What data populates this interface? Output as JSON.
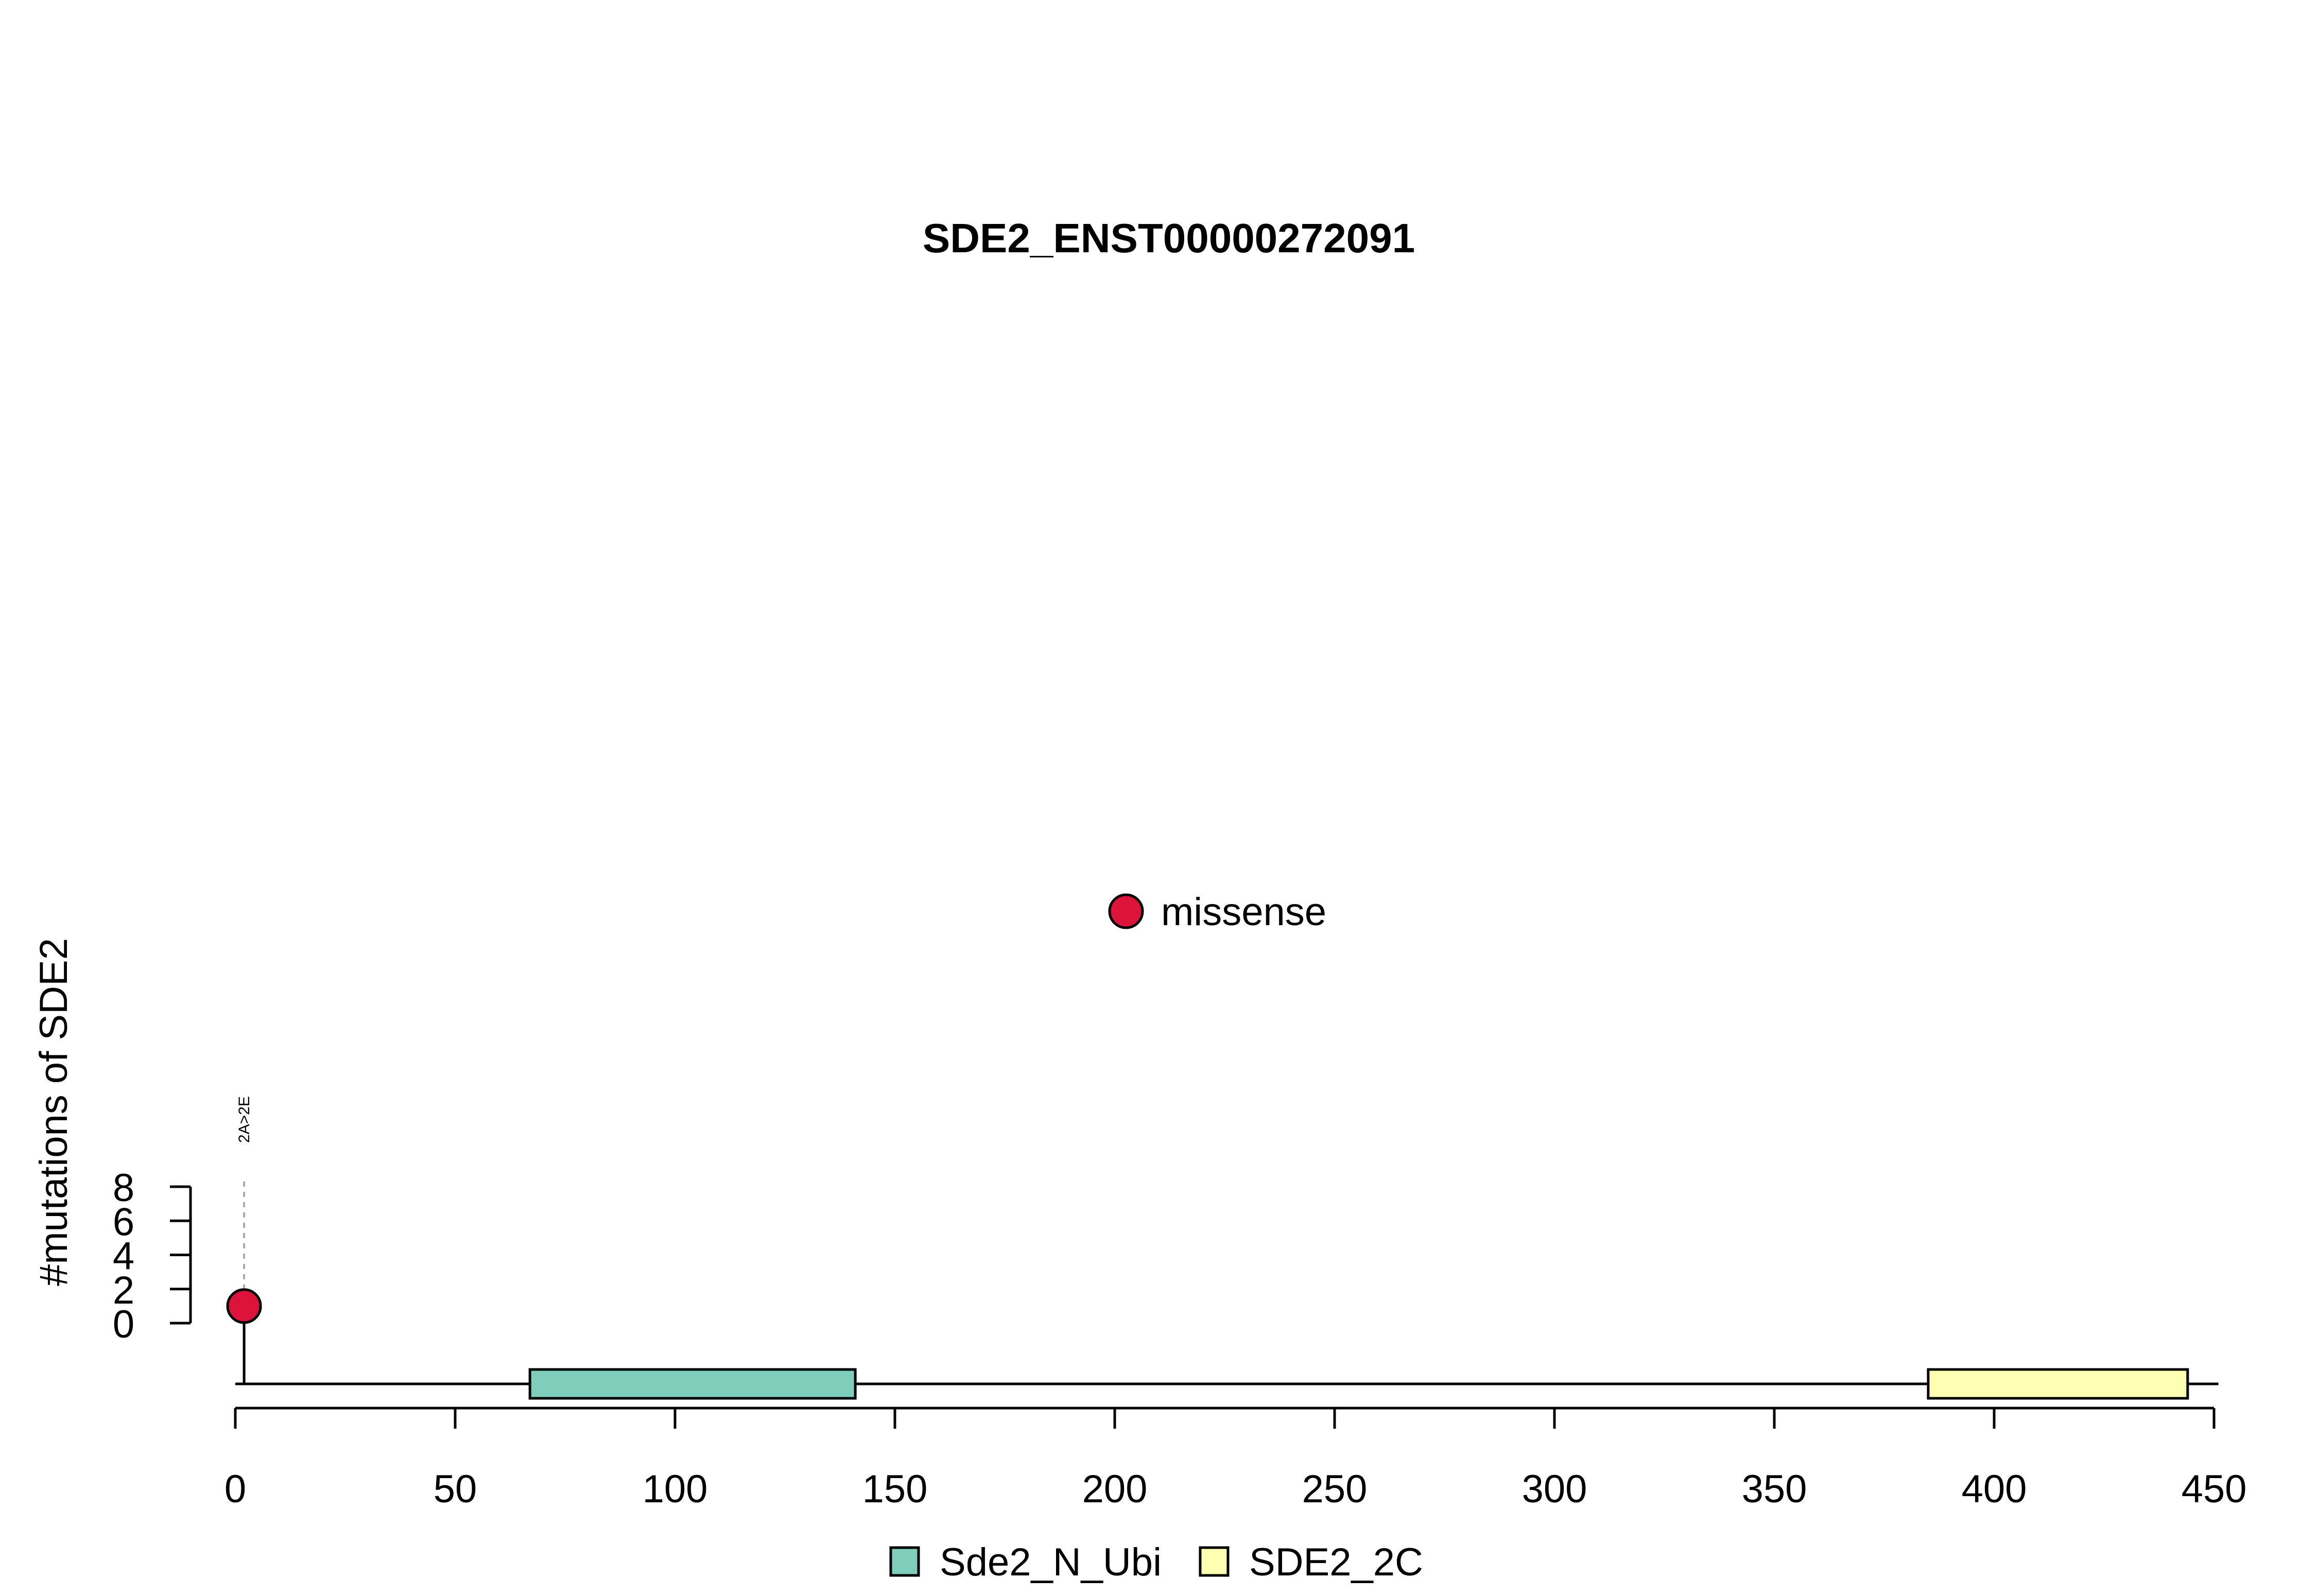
{
  "chart_data": {
    "type": "lollipop",
    "title": "SDE2_ENST00000272091",
    "ylabel": "#mutations of SDE2",
    "x_ticks": [
      0,
      50,
      100,
      150,
      200,
      250,
      300,
      350,
      400,
      450
    ],
    "y_ticks": [
      0,
      2,
      4,
      6,
      8
    ],
    "xlim": [
      0,
      450
    ],
    "ylim": [
      0,
      8
    ],
    "protein_length": 451,
    "mutation_legend": [
      {
        "label": "missense",
        "color": "#DC143C"
      }
    ],
    "mutations": [
      {
        "position": 2,
        "count": 1,
        "label": "2A>2E",
        "type": "missense",
        "color": "#DC143C"
      }
    ],
    "domains": [
      {
        "name": "Sde2_N_Ubi",
        "start": 67,
        "end": 141,
        "color": "#7FCDBB"
      },
      {
        "name": "SDE2_2C",
        "start": 385,
        "end": 444,
        "color": "#FFFFB3"
      }
    ]
  }
}
